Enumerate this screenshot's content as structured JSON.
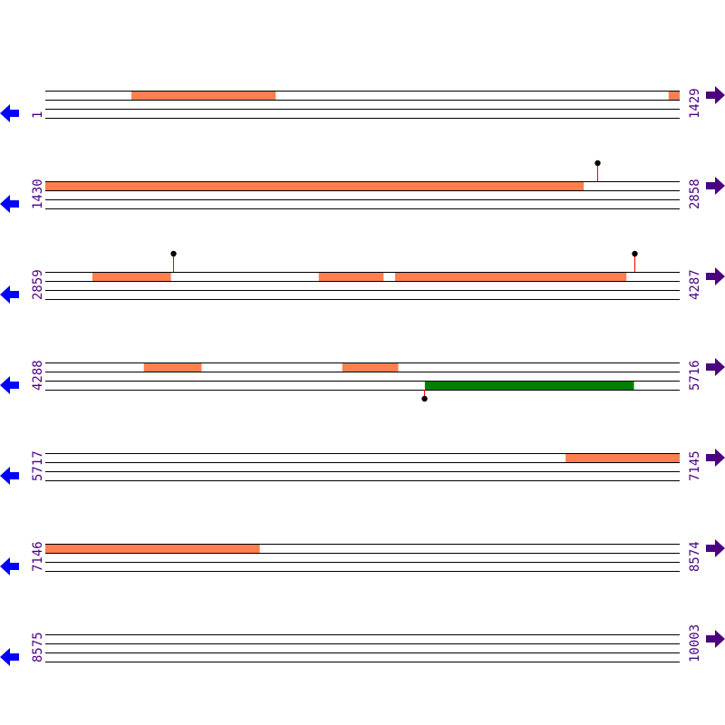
{
  "colors": {
    "forward_feature": "#ff7f50",
    "reverse_feature": "#008000",
    "track_line": "#000000",
    "label": "#4b0082",
    "left_arrow": "#0000ff",
    "right_arrow": "#4b0082",
    "marker_stem": "#ff0000",
    "marker_head": "#000000"
  },
  "bp_per_row": 1429,
  "rows": [
    {
      "start": "1",
      "end": "1429",
      "features": [
        {
          "strand": "forward",
          "from": 195,
          "to": 519
        },
        {
          "strand": "forward",
          "from": 1405,
          "to": 1429
        }
      ],
      "markers": []
    },
    {
      "start": "1430",
      "end": "2858",
      "features": [
        {
          "strand": "forward",
          "from": 1430,
          "to": 2642
        }
      ],
      "markers": [
        {
          "pos": 2673,
          "side": "top"
        }
      ]
    },
    {
      "start": "2859",
      "end": "4287",
      "features": [
        {
          "strand": "forward",
          "from": 2965,
          "to": 3141
        },
        {
          "strand": "forward",
          "from": 3475,
          "to": 3620
        },
        {
          "strand": "forward",
          "from": 3647,
          "to": 4167
        }
      ],
      "markers": [
        {
          "pos": 3147,
          "side": "top"
        },
        {
          "pos": 4186,
          "side": "top"
        }
      ]
    },
    {
      "start": "4288",
      "end": "5716",
      "features": [
        {
          "strand": "forward",
          "from": 4510,
          "to": 4639
        },
        {
          "strand": "forward",
          "from": 4957,
          "to": 5082
        },
        {
          "strand": "reverse",
          "from": 5143,
          "to": 5613
        }
      ],
      "markers": [
        {
          "pos": 5141,
          "side": "bottom"
        }
      ]
    },
    {
      "start": "5717",
      "end": "7145",
      "features": [
        {
          "strand": "forward",
          "from": 6889,
          "to": 7145
        }
      ],
      "markers": []
    },
    {
      "start": "7146",
      "end": "8574",
      "features": [
        {
          "strand": "forward",
          "from": 7146,
          "to": 7628
        }
      ],
      "markers": []
    },
    {
      "start": "8575",
      "end": "10003",
      "features": [],
      "markers": []
    }
  ]
}
